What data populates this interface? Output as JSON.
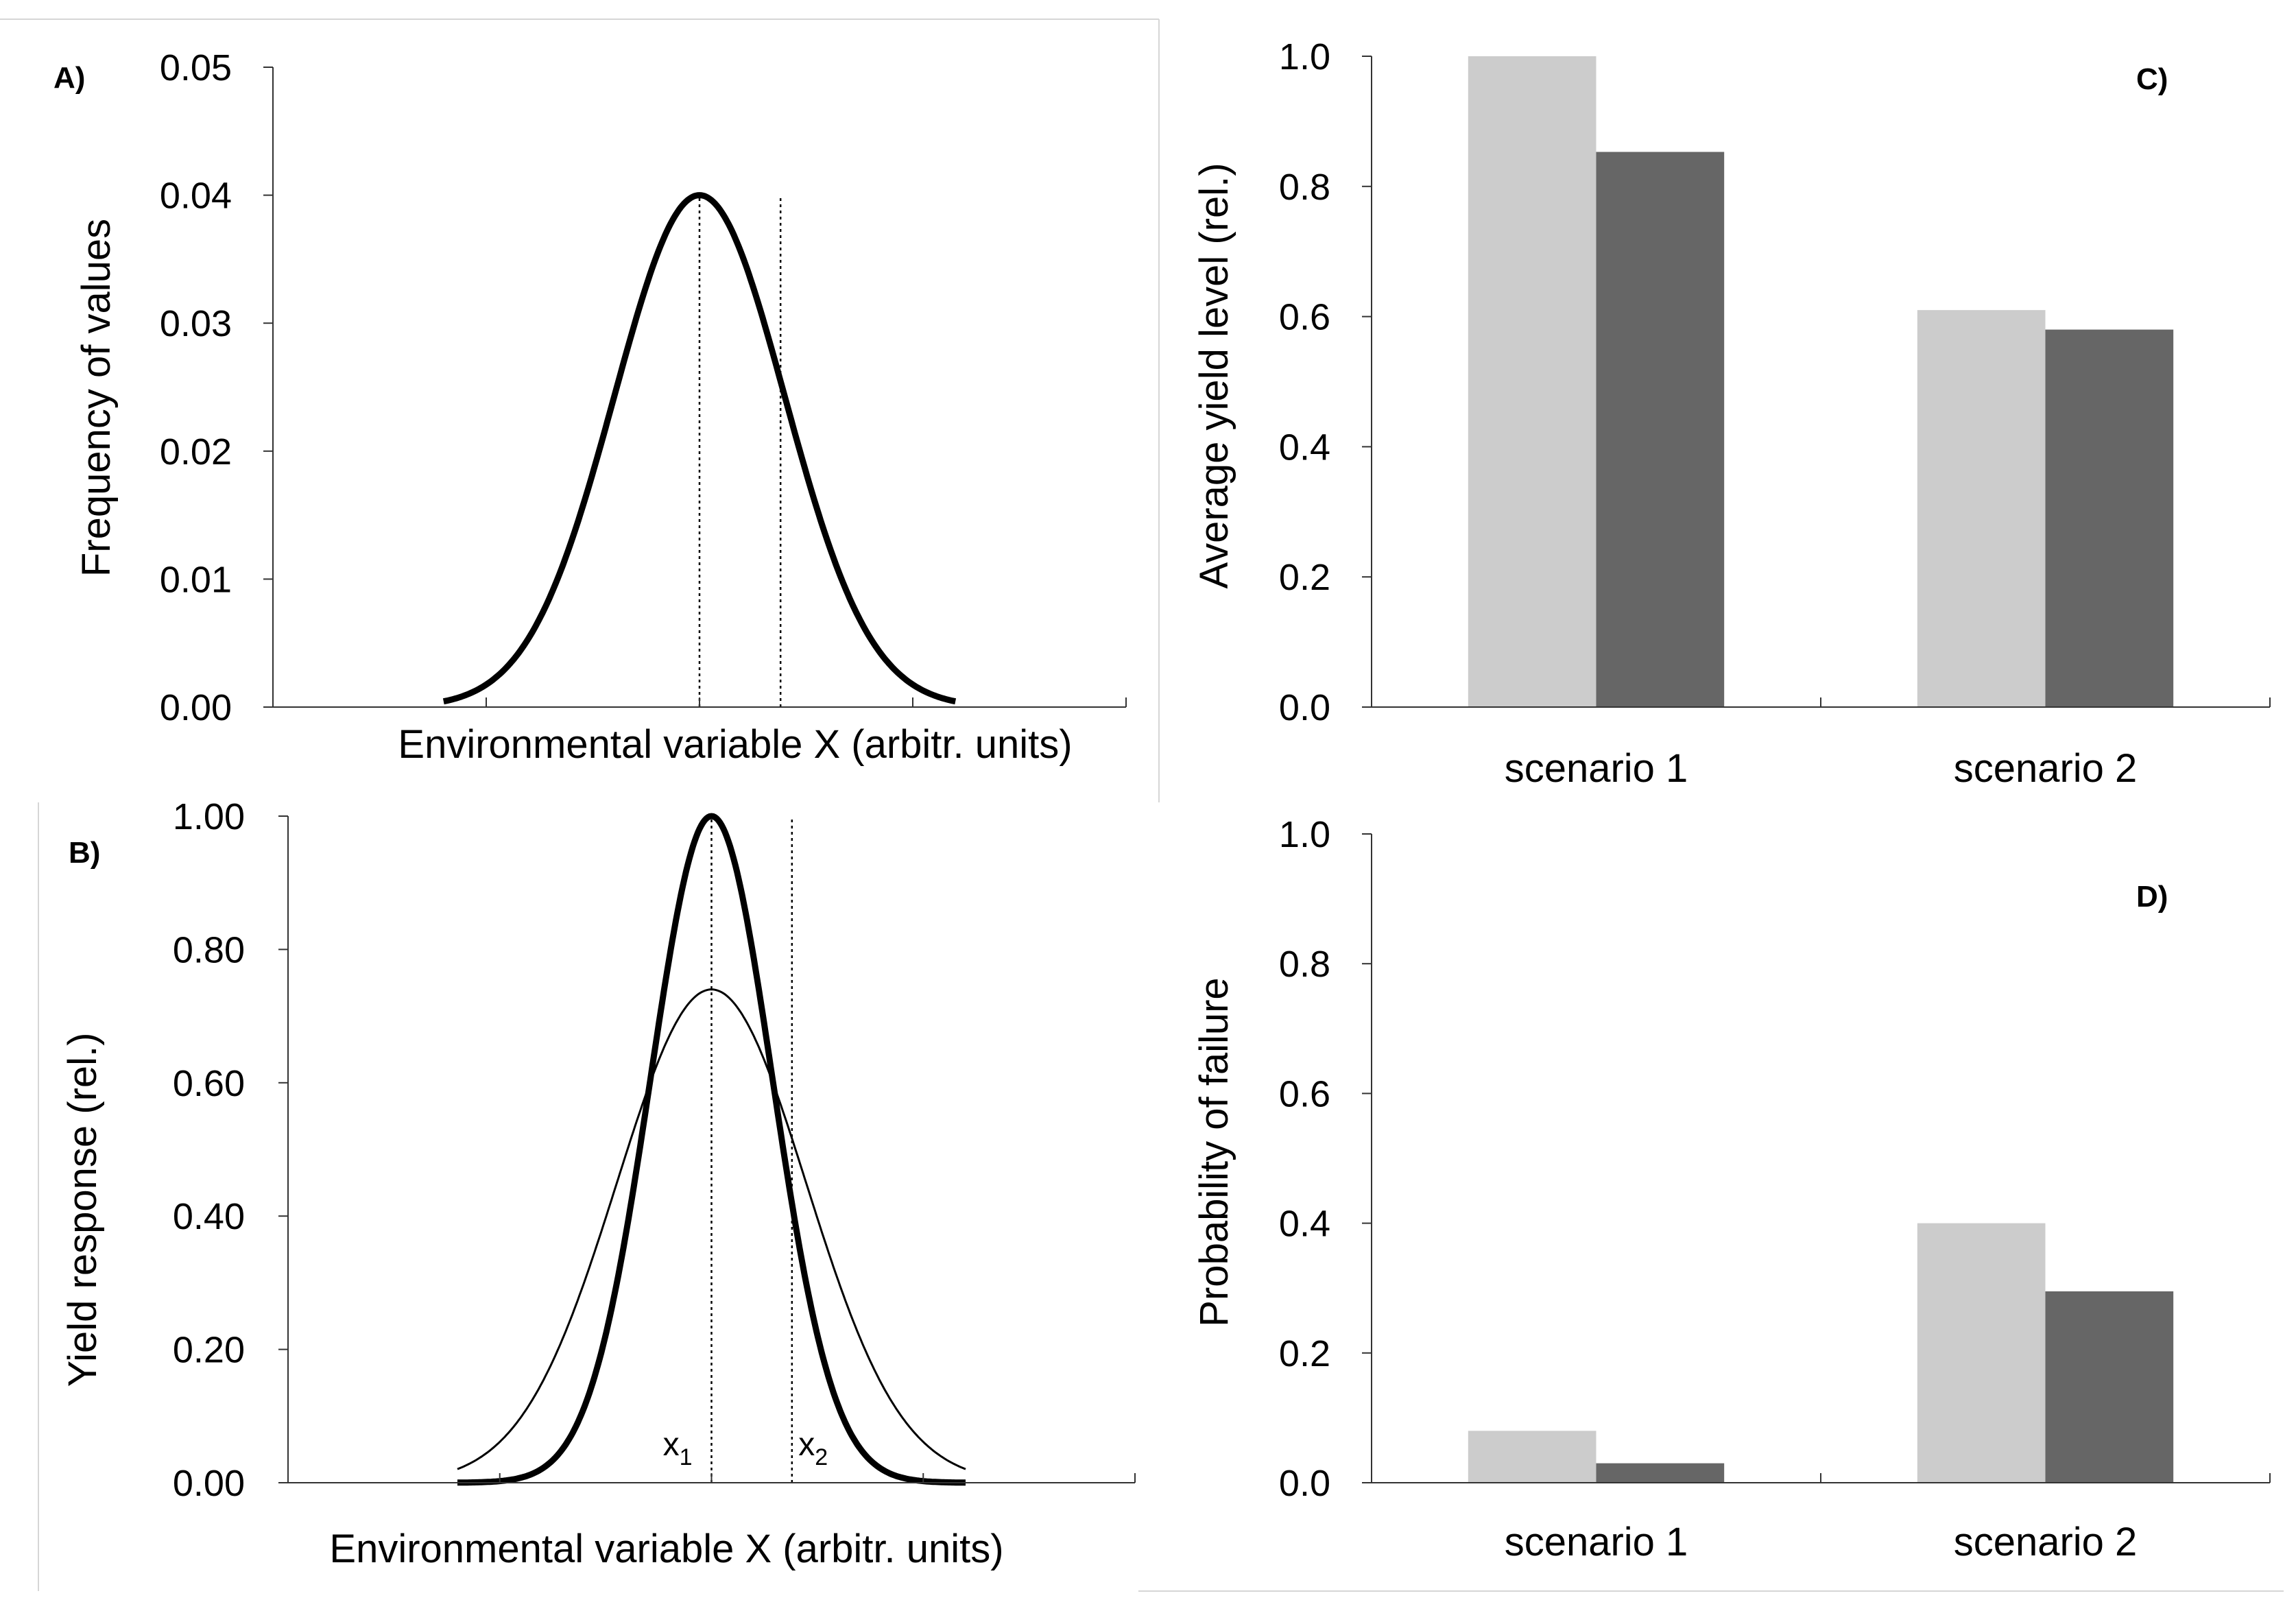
{
  "chart_data": [
    {
      "id": "A",
      "type": "line",
      "panel_label": "A)",
      "xlabel": "Environmental variable X (arbitr. units)",
      "ylabel": "Frequency of values",
      "ylim": [
        0,
        0.05
      ],
      "yticks": [
        "0.00",
        "0.01",
        "0.02",
        "0.03",
        "0.04",
        "0.05"
      ],
      "x_range": [
        0,
        100
      ],
      "series": [
        {
          "name": "frequency distribution",
          "distribution": "normal",
          "mean": 50,
          "sd": 10,
          "peak": 0.04,
          "x_start": 20,
          "x_end": 80,
          "style": "thick"
        }
      ],
      "vlines": [
        50,
        59.5
      ]
    },
    {
      "id": "B",
      "type": "line",
      "panel_label": "B)",
      "xlabel": "Environmental variable X (arbitr. units)",
      "ylabel": "Yield response (rel.)",
      "ylim": [
        0,
        1.0
      ],
      "yticks": [
        "0.00",
        "0.20",
        "0.40",
        "0.60",
        "0.80",
        "1.00"
      ],
      "x_range": [
        0,
        100
      ],
      "series": [
        {
          "name": "narrow response",
          "distribution": "gaussian",
          "mean": 50,
          "sd": 7.2,
          "peak": 1.0,
          "x_start": 20,
          "x_end": 80,
          "style": "thick"
        },
        {
          "name": "broad response",
          "distribution": "gaussian",
          "mean": 50,
          "sd": 11.2,
          "peak": 0.74,
          "x_start": 20,
          "x_end": 80,
          "style": "thin"
        }
      ],
      "vlines": [
        50,
        59.5
      ],
      "annotations": [
        {
          "base": "x",
          "sub": "1",
          "x": 46
        },
        {
          "base": "x",
          "sub": "2",
          "x": 62
        }
      ]
    },
    {
      "id": "C",
      "type": "bar",
      "panel_label": "C)",
      "ylabel": "Average yield level (rel.)",
      "ylim": [
        0,
        1.0
      ],
      "yticks": [
        "0.0",
        "0.2",
        "0.4",
        "0.6",
        "0.8",
        "1.0"
      ],
      "categories": [
        "scenario 1",
        "scenario 2"
      ],
      "series": [
        {
          "name": "light",
          "color": "#cccccc",
          "values": [
            1.0,
            0.61
          ]
        },
        {
          "name": "dark",
          "color": "#666666",
          "values": [
            0.853,
            0.58
          ]
        }
      ]
    },
    {
      "id": "D",
      "type": "bar",
      "panel_label": "D)",
      "ylabel": "Probability of failure",
      "ylim": [
        0,
        1.0
      ],
      "yticks": [
        "0.0",
        "0.2",
        "0.4",
        "0.6",
        "0.8",
        "1.0"
      ],
      "categories": [
        "scenario 1",
        "scenario 2"
      ],
      "series": [
        {
          "name": "light",
          "color": "#cccccc",
          "values": [
            0.08,
            0.4
          ]
        },
        {
          "name": "dark",
          "color": "#666666",
          "values": [
            0.03,
            0.295
          ]
        }
      ]
    }
  ]
}
